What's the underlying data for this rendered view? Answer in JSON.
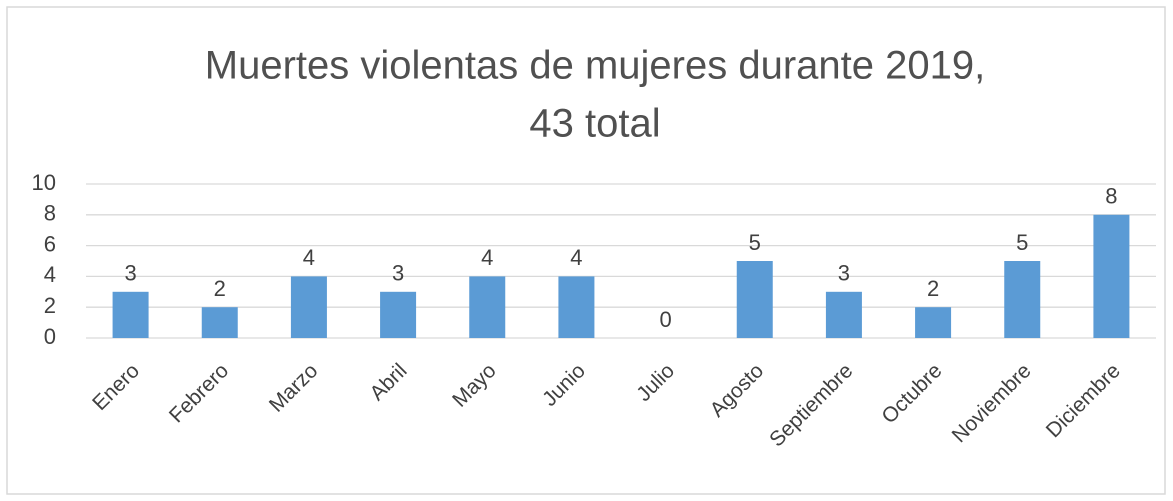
{
  "chart_data": {
    "type": "bar",
    "title": [
      "Muertes violentas de mujeres durante 2019,",
      "43 total"
    ],
    "categories": [
      "Enero",
      "Febrero",
      "Marzo",
      "Abril",
      "Mayo",
      "Junio",
      "Julio",
      "Agosto",
      "Septiembre",
      "Octubre",
      "Noviembre",
      "Diciembre"
    ],
    "values": [
      3,
      2,
      4,
      3,
      4,
      4,
      0,
      5,
      3,
      2,
      5,
      8
    ],
    "color": "#5b9bd5",
    "ylim": [
      0,
      10
    ],
    "yticks": [
      0,
      2,
      4,
      6,
      8,
      10
    ],
    "grid": true
  }
}
